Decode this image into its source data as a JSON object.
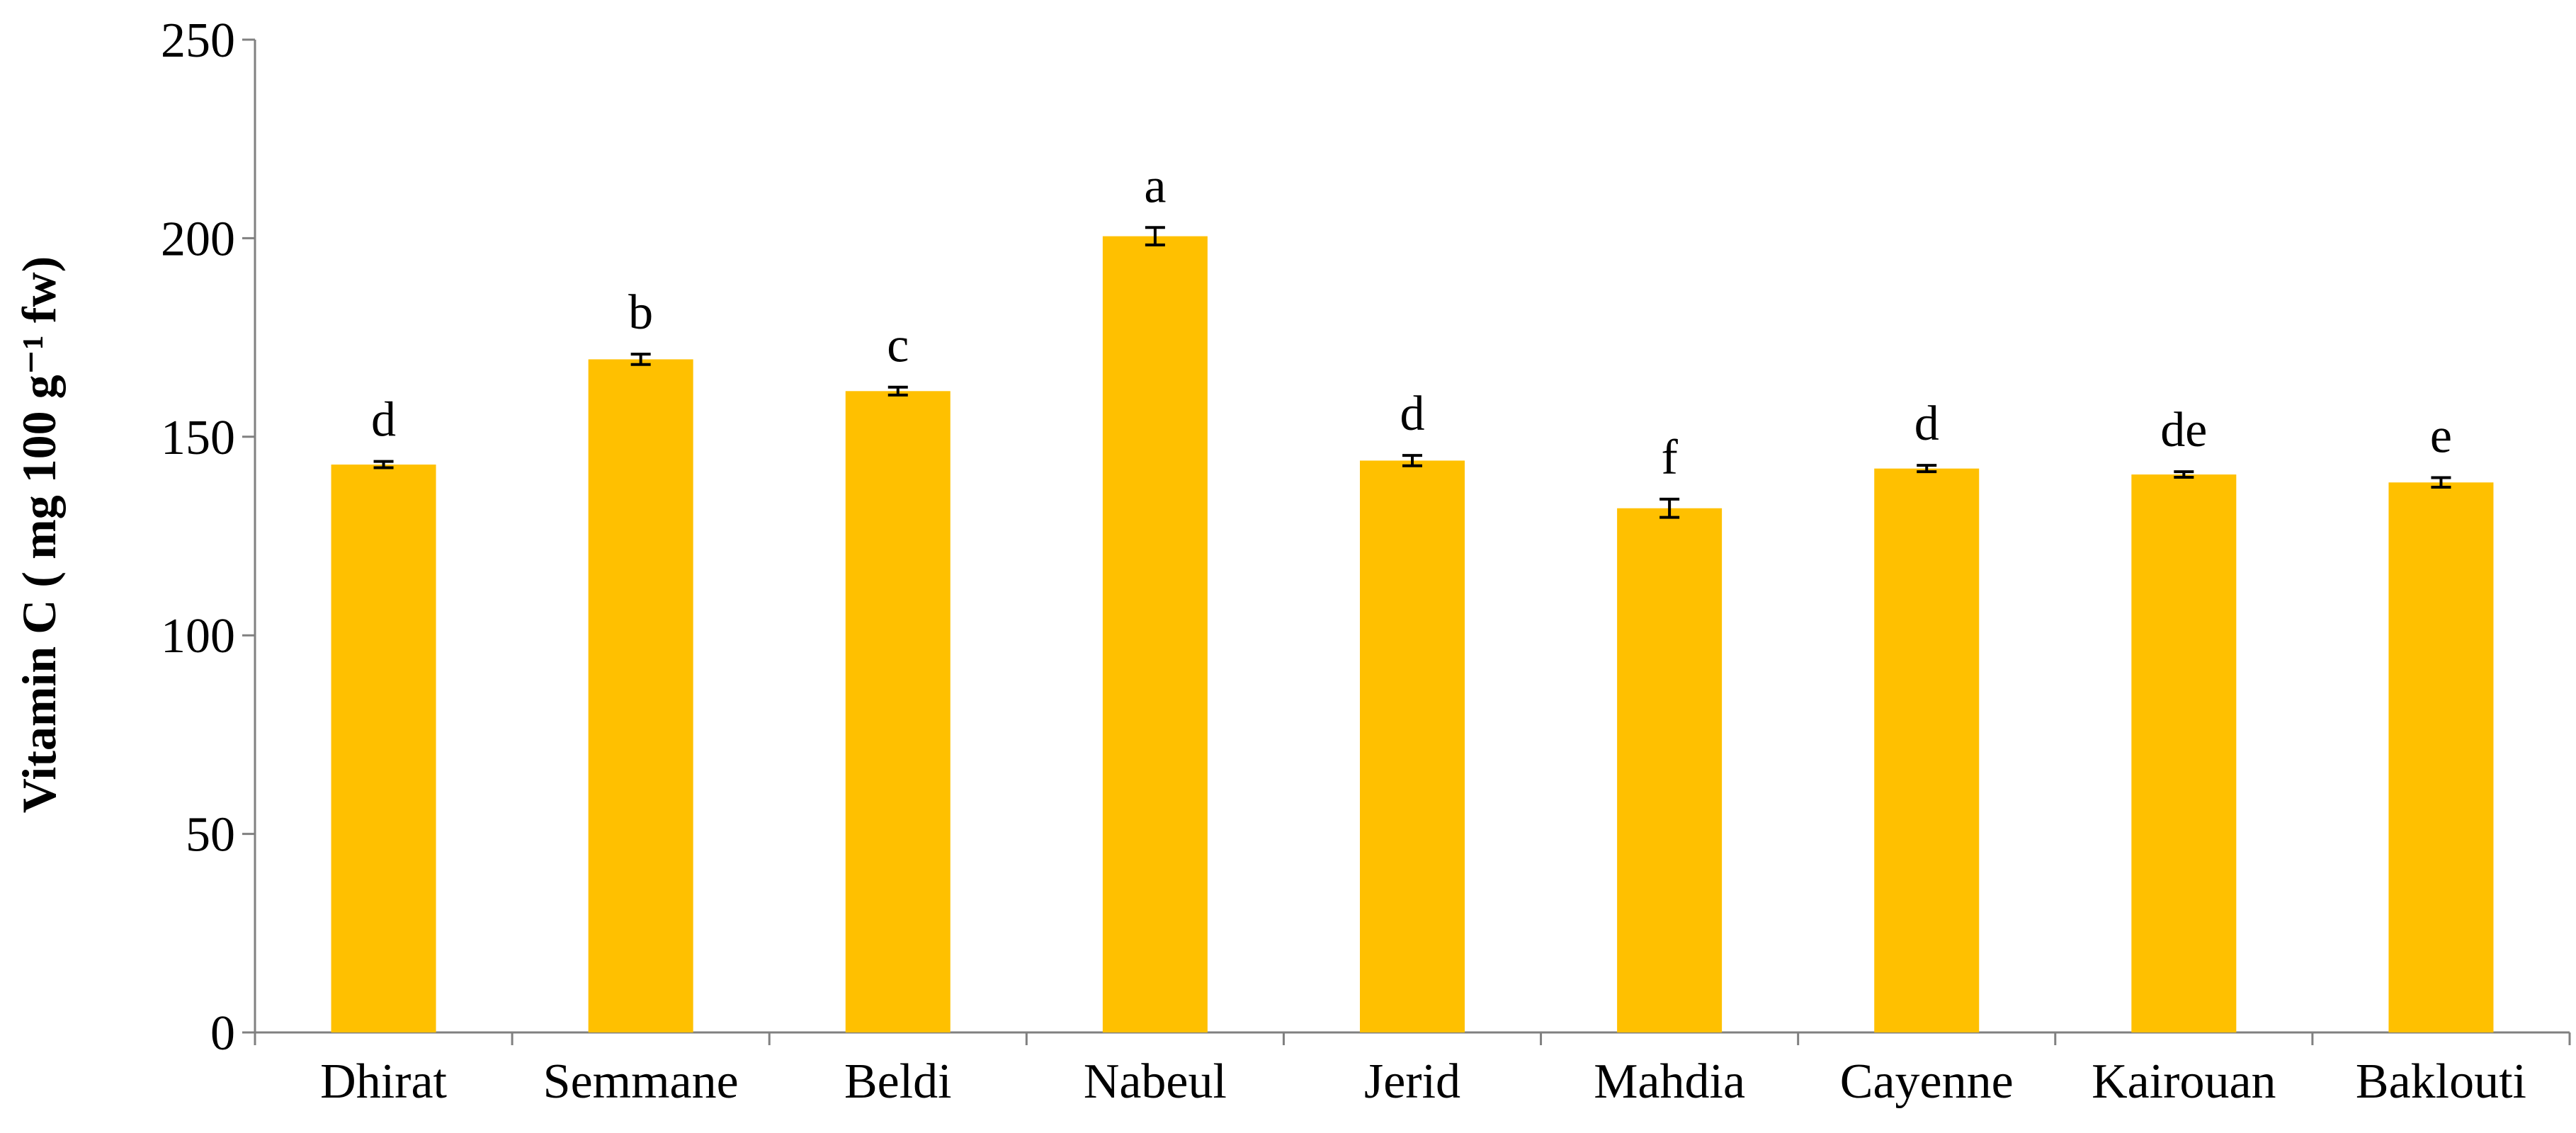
{
  "chart_data": {
    "type": "bar",
    "title": "",
    "xlabel": "",
    "ylabel": "Vitamin C ( mg 100 g⁻¹ fw)",
    "ylim": [
      0,
      250
    ],
    "yticks": [
      0,
      50,
      100,
      150,
      200,
      250
    ],
    "ytick_labels": [
      "0",
      "50",
      "100",
      "150",
      "200",
      "250"
    ],
    "grid": false,
    "legend": "none",
    "categories": [
      "Dhirat",
      "Semmane",
      "Beldi",
      "Nabeul",
      "Jerid",
      "Mahdia",
      "Cayenne",
      "Kairouan",
      "Baklouti"
    ],
    "values": [
      143,
      169.5,
      161.5,
      200.5,
      144,
      132,
      142,
      140.5,
      138.5
    ],
    "errors": [
      0.8,
      1.3,
      1.0,
      2.2,
      1.3,
      2.3,
      0.8,
      0.7,
      1.2
    ],
    "annotations": [
      "d",
      "b",
      "c",
      "a",
      "d",
      "f",
      "d",
      "de",
      "e"
    ],
    "bar_color": "#FFC000"
  }
}
